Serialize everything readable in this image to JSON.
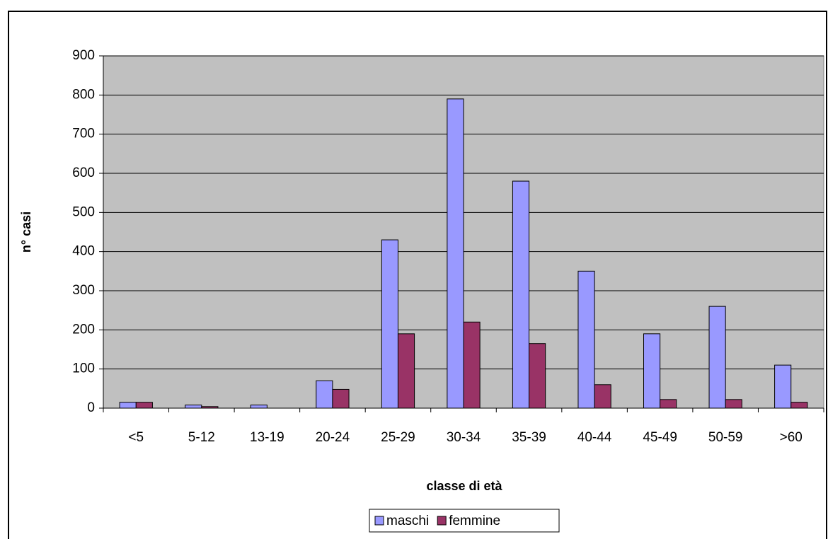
{
  "chart_data": {
    "type": "bar",
    "x_label": "classe di età",
    "y_label": "n° casi",
    "categories": [
      "<5",
      "5-12",
      "13-19",
      "20-24",
      "25-29",
      "30-34",
      "35-39",
      "40-44",
      "45-49",
      "50-59",
      ">60"
    ],
    "series": [
      {
        "name": "maschi",
        "color": "#9999ff",
        "values": [
          15,
          8,
          8,
          70,
          430,
          790,
          580,
          350,
          190,
          260,
          110
        ]
      },
      {
        "name": "femmine",
        "color": "#993366",
        "values": [
          15,
          4,
          0,
          48,
          190,
          220,
          165,
          60,
          22,
          22,
          15
        ]
      }
    ],
    "ylim": [
      0,
      900
    ],
    "yticks": [
      0,
      100,
      200,
      300,
      400,
      500,
      600,
      700,
      800,
      900
    ],
    "grid": true,
    "legend": "bottom"
  }
}
